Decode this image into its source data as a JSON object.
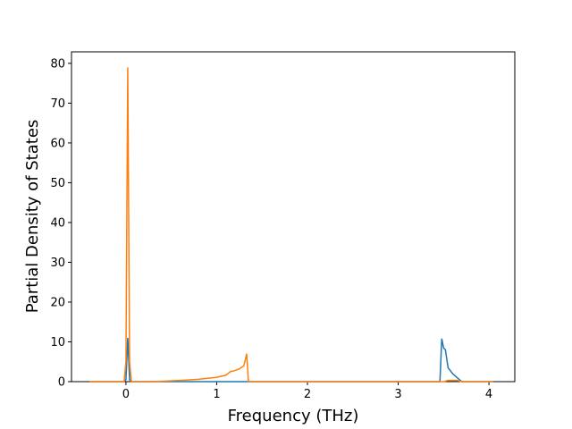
{
  "chart_data": {
    "type": "line",
    "xlabel": "Frequency (THz)",
    "ylabel": "Partial Density of States",
    "series": [
      {
        "color": "#1f77b4",
        "x": [
          -0.4,
          -0.02,
          0.0,
          0.02,
          0.04,
          0.06,
          3.46,
          3.48,
          3.5,
          3.52,
          3.55,
          3.6,
          3.65,
          3.7,
          4.05
        ],
        "values": [
          0,
          0,
          0.5,
          11,
          0.5,
          0,
          0,
          10.8,
          8.5,
          8,
          3.5,
          2,
          1,
          0,
          0
        ]
      },
      {
        "color": "#ff7f0e",
        "x": [
          -0.4,
          -0.02,
          0.0,
          0.02,
          0.04,
          0.06,
          0.3,
          0.6,
          0.8,
          1.0,
          1.1,
          1.15,
          1.2,
          1.25,
          1.3,
          1.33,
          1.35,
          3.5,
          3.55,
          3.65,
          3.7,
          4.05
        ],
        "values": [
          0,
          0,
          5,
          79,
          5,
          0,
          0,
          0.3,
          0.6,
          1.1,
          1.6,
          2.5,
          2.8,
          3.2,
          4,
          7,
          0,
          0,
          0.3,
          0.3,
          0,
          0
        ]
      }
    ],
    "xlim": [
      -0.6,
      4.285
    ],
    "xticks": [
      0,
      1,
      2,
      3,
      4
    ],
    "ylim": [
      0,
      82.9
    ],
    "yticks": [
      0,
      10,
      20,
      30,
      40,
      50,
      60,
      70,
      80
    ]
  }
}
